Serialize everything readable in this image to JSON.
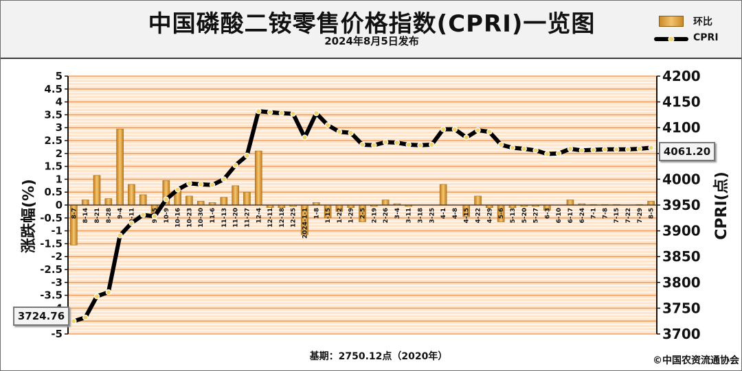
{
  "header": {
    "title": "中国磷酸二铵零售价格指数(CPRI)一览图",
    "subtitle": "2024年8月5日发布"
  },
  "legend": {
    "bar_label": "环比",
    "line_label": "CPRI"
  },
  "footer": {
    "base": "基期：2750.12点（2020年）",
    "copyright": "©中国农资流通协会"
  },
  "callouts": {
    "start": "3724.76",
    "end": "4061.20"
  },
  "colors": {
    "bar": "#e6a445",
    "line": "#000000",
    "marker": "#f3d36b",
    "plot_bg": "#ffe5cc",
    "grid_major": "#f0a060",
    "grid_minor": "#ffffff"
  },
  "chart_data": {
    "type": "bar+line",
    "ylabel_left": "涨跌幅(%)",
    "ylabel_right": "CPRI(点)",
    "ylim_left": [
      -5,
      5
    ],
    "ylim_right": [
      3700,
      4200
    ],
    "yticks_left": [
      "5",
      "4.5",
      "4",
      "3.5",
      "3",
      "2.5",
      "2",
      "1.5",
      "1",
      "0.5",
      "0",
      "-0.5",
      "-1",
      "-1.5",
      "-2",
      "-2.5",
      "-3",
      "-3.5",
      "-4",
      "-4.5",
      "-5"
    ],
    "yticks_right": [
      "4200",
      "4150",
      "4100",
      "4050",
      "4000",
      "3950",
      "3900",
      "3850",
      "3800",
      "3750",
      "3700"
    ],
    "categories": [
      "8-7",
      "8-14",
      "8-21",
      "8-28",
      "9-4",
      "9-11",
      "9-18",
      "9-25",
      "10-9",
      "10-16",
      "10-23",
      "10-30",
      "11-6",
      "11-13",
      "11-20",
      "11-27",
      "12-4",
      "12-11",
      "12-18",
      "12-25",
      "2024-1-1",
      "1-8",
      "1-15",
      "1-22",
      "1-29",
      "2-5",
      "2-19",
      "2-26",
      "3-4",
      "3-11",
      "3-18",
      "3-25",
      "4-1",
      "4-8",
      "4-15",
      "4-22",
      "4-29",
      "5-6",
      "5-13",
      "5-20",
      "5-27",
      "6-3",
      "6-10",
      "6-17",
      "6-24",
      "7-1",
      "7-8",
      "7-15",
      "7-22",
      "7-29",
      "8-5"
    ],
    "labeled_categories": [
      "8-7",
      "8-14",
      "8-21",
      "8-28",
      "9-4",
      "9-11",
      "9-25",
      "10-9",
      "10-16",
      "10-23",
      "10-30",
      "11-6",
      "11-13",
      "11-20",
      "11-27",
      "12-4",
      "12-11",
      "12-18",
      "12-25",
      "2024-1-1",
      "1-8",
      "1-15",
      "1-22",
      "1-29",
      "2-5",
      "2-19",
      "2-26",
      "3-4",
      "3-11",
      "3-18",
      "3-25",
      "4-1",
      "4-8",
      "4-15",
      "4-22",
      "4-29",
      "5-6",
      "5-13",
      "5-20",
      "5-27",
      "6-3",
      "6-10",
      "6-17",
      "6-24",
      "7-1",
      "7-8",
      "7-15",
      "7-22",
      "7-29",
      "8-5"
    ],
    "series": [
      {
        "name": "环比",
        "type": "bar",
        "values": [
          -1.55,
          0.2,
          1.15,
          0.25,
          2.95,
          0.8,
          0.4,
          -0.4,
          0.95,
          0.55,
          0.35,
          0.15,
          0.1,
          0.3,
          0.75,
          0.5,
          2.1,
          -0.1,
          -0.1,
          -0.05,
          -1.15,
          0.1,
          -0.5,
          -0.25,
          -0.1,
          -0.65,
          -0.05,
          0.2,
          0.05,
          -0.05,
          0.0,
          0.0,
          0.8,
          0.0,
          -0.45,
          0.35,
          -0.1,
          -0.65,
          -0.1,
          -0.05,
          -0.05,
          -0.2,
          0.0,
          0.2,
          0.05,
          0.02,
          0.02,
          0.02,
          0.0,
          0.02,
          0.15
        ]
      },
      {
        "name": "CPRI",
        "type": "line",
        "values": [
          3724.76,
          3732,
          3773,
          3781,
          3891,
          3915,
          3931,
          3928,
          3961,
          3980,
          3992,
          3990,
          3989,
          4000,
          4027,
          4046,
          4132,
          4130,
          4128,
          4127,
          4081,
          4128,
          4105,
          4092,
          4090,
          4067,
          4066,
          4072,
          4071,
          4067,
          4066,
          4067,
          4097,
          4097,
          4081,
          4095,
          4092,
          4067,
          4061,
          4059,
          4056,
          4049,
          4050,
          4059,
          4056,
          4057,
          4058,
          4058,
          4058,
          4059,
          4061.2
        ]
      }
    ]
  }
}
